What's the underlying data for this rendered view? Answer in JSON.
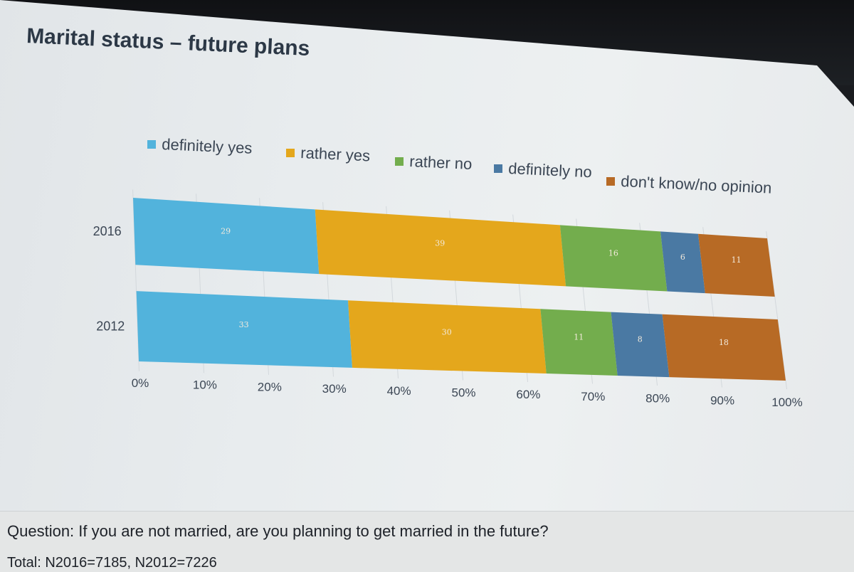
{
  "title": "Marital status – future plans",
  "question": "Question: If you are not married, are you planning to get married in the future?",
  "total": "Total: N2016=7185, N2012=7226",
  "chart_data": {
    "type": "bar",
    "orientation": "horizontal",
    "stacked": true,
    "categories": [
      "2016",
      "2012"
    ],
    "series": [
      {
        "name": "definitely yes",
        "color": "#52b3dc",
        "values": [
          29,
          33
        ]
      },
      {
        "name": "rather yes",
        "color": "#e4a71c",
        "values": [
          39,
          30
        ]
      },
      {
        "name": "rather no",
        "color": "#73ad4d",
        "values": [
          16,
          11
        ]
      },
      {
        "name": "definitely no",
        "color": "#4a79a3",
        "values": [
          6,
          8
        ]
      },
      {
        "name": "don't know/no opinion",
        "color": "#b76a25",
        "values": [
          11,
          18
        ]
      }
    ],
    "x_ticks": [
      "0%",
      "10%",
      "20%",
      "30%",
      "40%",
      "50%",
      "60%",
      "70%",
      "80%",
      "90%",
      "100%"
    ],
    "xlim": [
      0,
      100
    ],
    "legend_position": "top",
    "grid": true
  }
}
